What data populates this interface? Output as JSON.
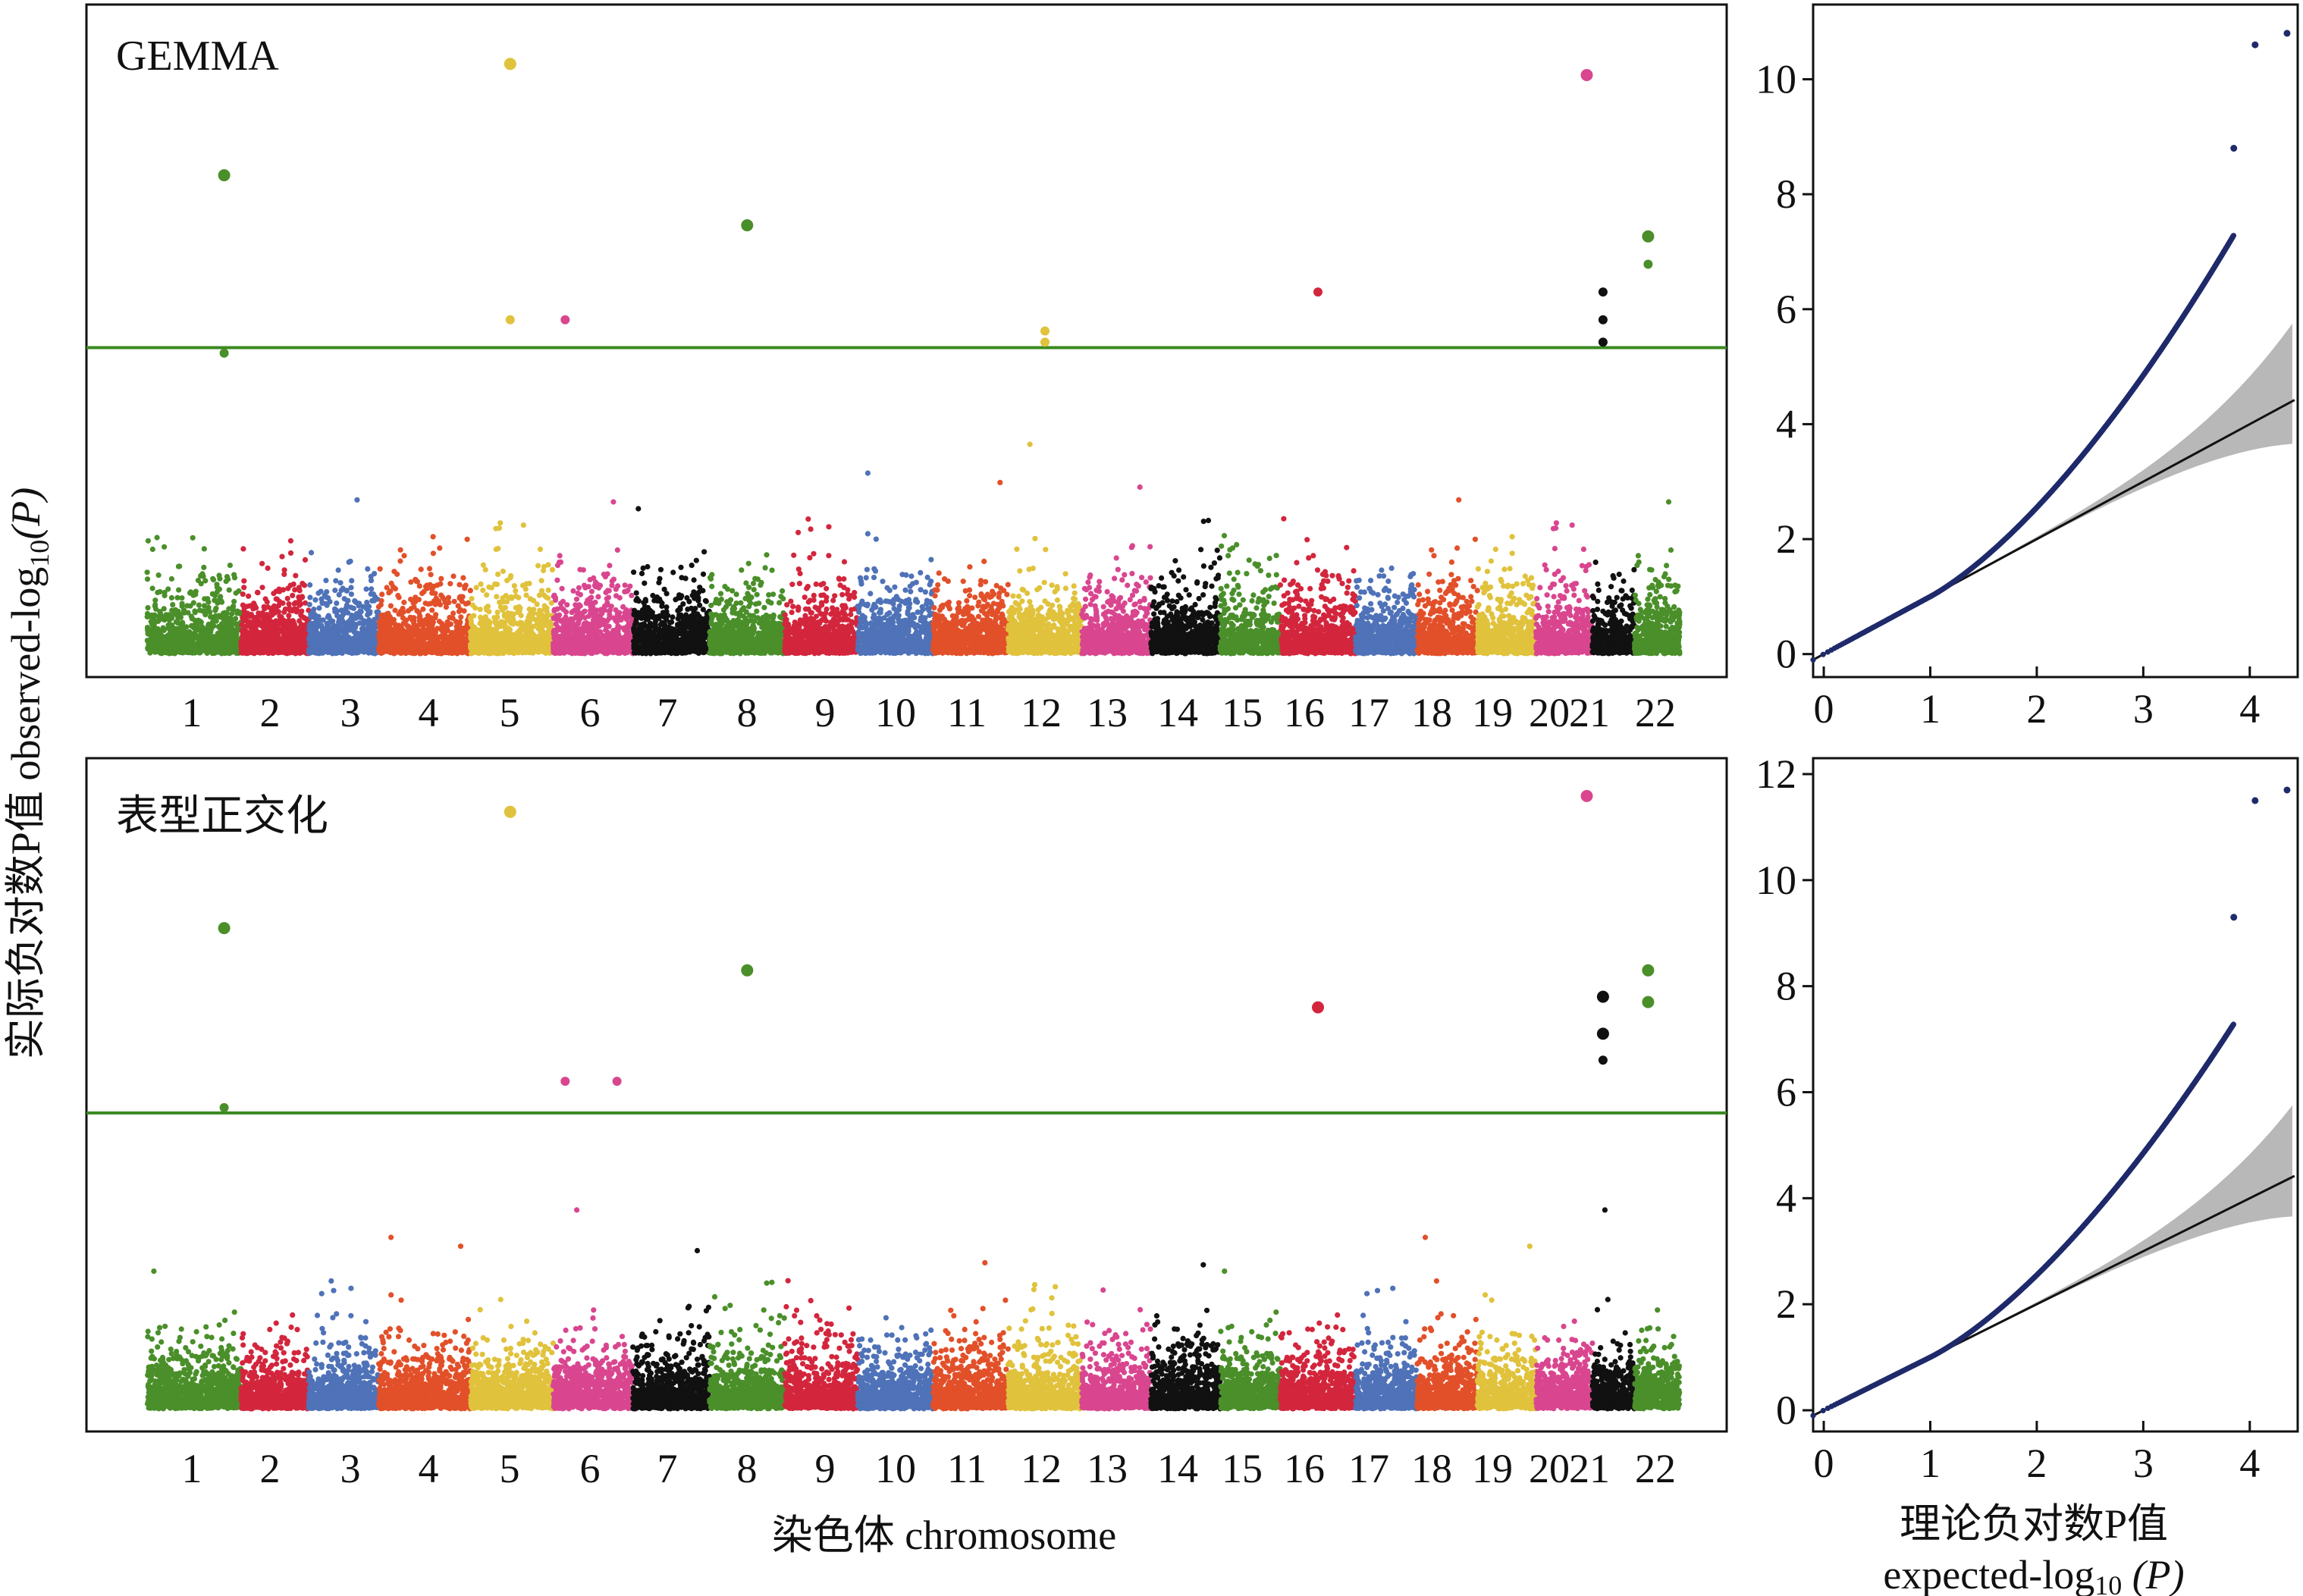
{
  "figure": {
    "y_axis_label_cn": "实际负对数P值 ",
    "y_axis_label_en": "observed-log",
    "y_axis_label_sub": "10",
    "y_axis_label_p": "(P)",
    "x_axis_label": "染色体 chromosome",
    "qq_x_label_cn": "理论负对数P值",
    "qq_x_label_en": "expected-log",
    "qq_x_label_sub": "10",
    "qq_x_label_p": " (P)"
  },
  "colors": {
    "threshold": "#3a8a1f",
    "qq_points": "#1f2a6b",
    "qq_line": "#111111",
    "qq_band": "#b8b8b8",
    "chromosomes": [
      "#4a8f2a",
      "#d3263d",
      "#4f72b8",
      "#e2502a",
      "#e0c23c",
      "#d9468f",
      "#111111",
      "#4a8f2a",
      "#d3263d",
      "#4f72b8",
      "#e2502a",
      "#e0c23c",
      "#d9468f",
      "#111111",
      "#4a8f2a",
      "#d3263d",
      "#4f72b8",
      "#e2502a",
      "#e0c23c",
      "#d9468f",
      "#111111",
      "#4a8f2a"
    ]
  },
  "chart_data": [
    {
      "type": "scatter",
      "title": "GEMMA",
      "xlabel": "染色体 chromosome",
      "ylabel": "实际负对数P值 observed-log10(P)",
      "chromosomes": [
        "1",
        "2",
        "3",
        "4",
        "5",
        "6",
        "7",
        "8",
        "9",
        "10",
        "11",
        "12",
        "13",
        "14",
        "15",
        "16",
        "17",
        "18",
        "19",
        "20",
        "21",
        "22"
      ],
      "threshold": 5.5,
      "ylim": [
        0,
        11
      ],
      "notable_points": [
        {
          "chr": "1",
          "y": 8.6
        },
        {
          "chr": "1",
          "y": 5.4
        },
        {
          "chr": "5",
          "y": 10.6
        },
        {
          "chr": "5",
          "y": 6.0
        },
        {
          "chr": "6",
          "y": 6.0
        },
        {
          "chr": "8",
          "y": 7.7
        },
        {
          "chr": "12",
          "y": 5.8
        },
        {
          "chr": "12",
          "y": 5.6
        },
        {
          "chr": "16",
          "y": 6.5
        },
        {
          "chr": "20",
          "y": 10.4
        },
        {
          "chr": "21",
          "y": 6.5
        },
        {
          "chr": "21",
          "y": 6.0
        },
        {
          "chr": "21",
          "y": 5.6
        },
        {
          "chr": "22",
          "y": 7.5
        },
        {
          "chr": "22",
          "y": 7.0
        }
      ]
    },
    {
      "type": "scatter",
      "title": "表型正交化",
      "xlabel": "染色体 chromosome",
      "ylabel": "实际负对数P值 observed-log10(P)",
      "chromosomes": [
        "1",
        "2",
        "3",
        "4",
        "5",
        "6",
        "7",
        "8",
        "9",
        "10",
        "11",
        "12",
        "13",
        "14",
        "15",
        "16",
        "17",
        "18",
        "19",
        "20",
        "21",
        "22"
      ],
      "threshold": 5.6,
      "ylim": [
        0,
        11.8
      ],
      "notable_points": [
        {
          "chr": "1",
          "y": 9.1
        },
        {
          "chr": "1",
          "y": 5.7
        },
        {
          "chr": "5",
          "y": 11.3
        },
        {
          "chr": "6",
          "y": 6.2
        },
        {
          "chr": "6",
          "y": 6.2
        },
        {
          "chr": "8",
          "y": 8.3
        },
        {
          "chr": "16",
          "y": 7.6
        },
        {
          "chr": "20",
          "y": 11.6
        },
        {
          "chr": "21",
          "y": 7.8
        },
        {
          "chr": "21",
          "y": 7.1
        },
        {
          "chr": "21",
          "y": 6.6
        },
        {
          "chr": "22",
          "y": 8.3
        },
        {
          "chr": "22",
          "y": 7.7
        }
      ]
    },
    {
      "type": "scatter",
      "title": "",
      "xlabel": "expected-log10(P)",
      "ylabel": "",
      "xlim": [
        -0.1,
        4.45
      ],
      "ylim": [
        -0.4,
        11.3
      ],
      "xticks": [
        0,
        1,
        2,
        3,
        4
      ],
      "yticks": [
        0,
        2,
        4,
        6,
        8,
        10
      ],
      "top_points": [
        {
          "x": 3.85,
          "y": 8.8
        },
        {
          "x": 4.05,
          "y": 10.6
        },
        {
          "x": 4.35,
          "y": 10.8
        }
      ]
    },
    {
      "type": "scatter",
      "title": "",
      "xlabel": "expected-log10(P)",
      "ylabel": "",
      "xlim": [
        -0.1,
        4.45
      ],
      "ylim": [
        -0.4,
        12.3
      ],
      "xticks": [
        0,
        1,
        2,
        3,
        4
      ],
      "yticks": [
        0,
        2,
        4,
        6,
        8,
        10,
        12
      ],
      "top_points": [
        {
          "x": 3.85,
          "y": 9.3
        },
        {
          "x": 4.05,
          "y": 11.5
        },
        {
          "x": 4.35,
          "y": 11.7
        }
      ]
    }
  ]
}
